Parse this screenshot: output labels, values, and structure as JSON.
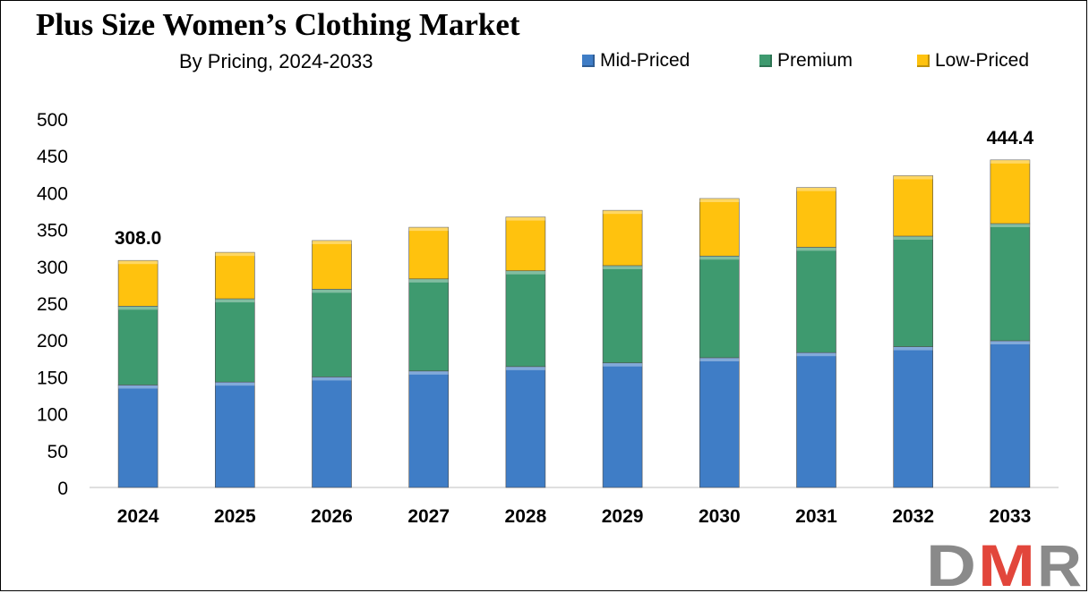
{
  "title": "Plus Size Women’s Clothing Market",
  "subtitle": "By Pricing, 2024-2033",
  "legend": [
    {
      "label": "Mid-Priced",
      "color": "#3F7DC6"
    },
    {
      "label": "Premium",
      "color": "#3E9A6F"
    },
    {
      "label": "Low-Priced",
      "color": "#FFC20E"
    }
  ],
  "logo_text": "DMR",
  "chart_data": {
    "type": "bar",
    "stacked": true,
    "categories": [
      "2024",
      "2025",
      "2026",
      "2027",
      "2028",
      "2029",
      "2030",
      "2031",
      "2032",
      "2033"
    ],
    "series": [
      {
        "name": "Mid-Priced",
        "color": "#3F7DC6",
        "values": [
          139,
          143,
          150,
          158,
          164,
          169,
          176,
          183,
          191,
          199
        ]
      },
      {
        "name": "Premium",
        "color": "#3E9A6F",
        "values": [
          107,
          113,
          119,
          125,
          130,
          132,
          138,
          143,
          150,
          159
        ]
      },
      {
        "name": "Low-Priced",
        "color": "#FFC20E",
        "values": [
          62,
          63,
          66,
          70,
          73,
          75,
          78,
          81,
          82,
          86.4
        ]
      }
    ],
    "totals_labels": [
      {
        "category": "2024",
        "text": "308.0"
      },
      {
        "category": "2033",
        "text": "444.4"
      }
    ],
    "yticks": [
      0,
      50,
      100,
      150,
      200,
      250,
      300,
      350,
      400,
      450,
      500
    ],
    "ylim": [
      0,
      500
    ],
    "grid": false,
    "legend_position": "top-right"
  }
}
